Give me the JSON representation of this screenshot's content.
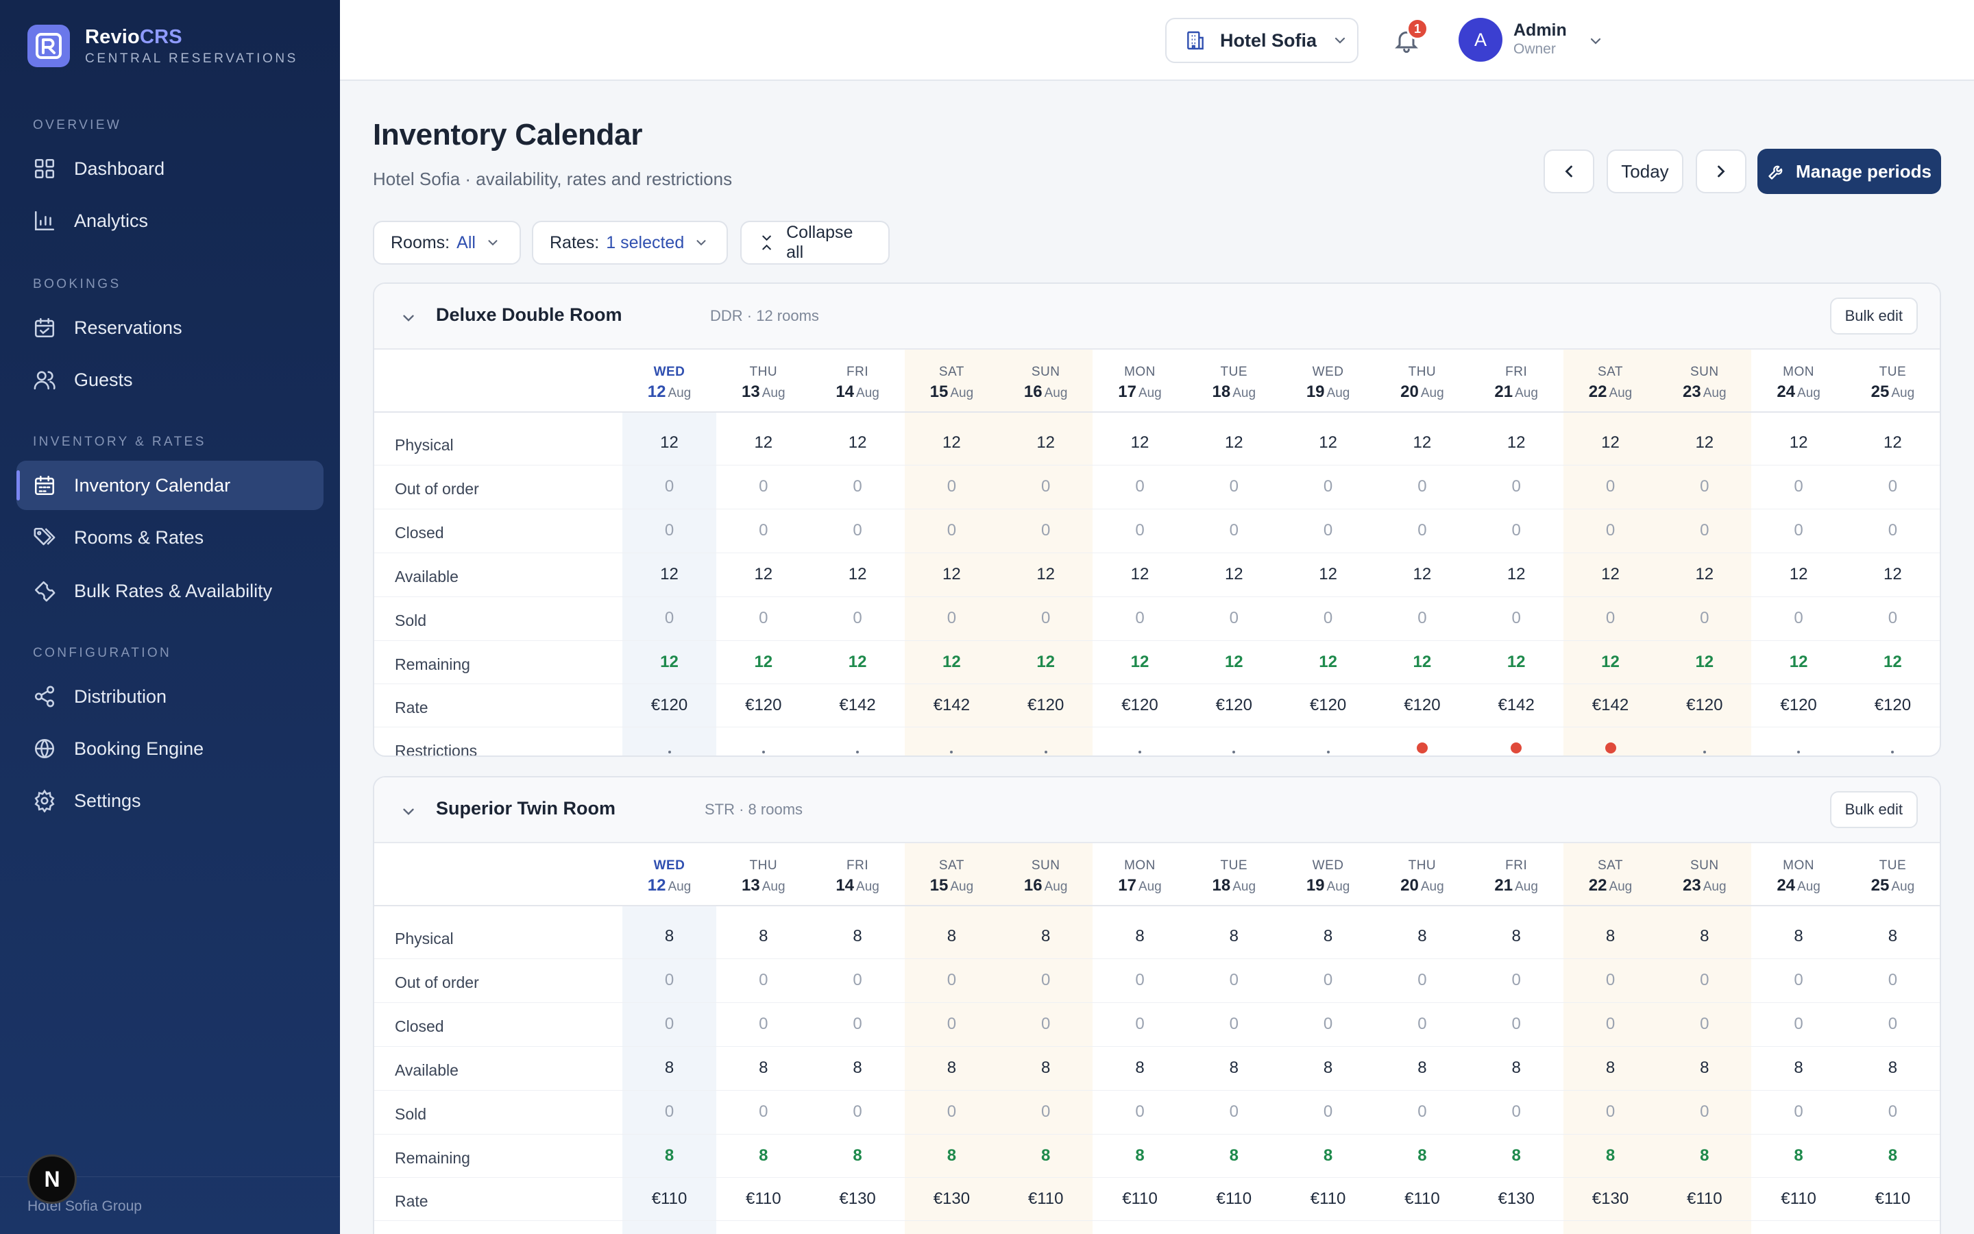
{
  "brand": {
    "name_main": "Revio",
    "name_accent": "CRS",
    "subtitle": "CENTRAL RESERVATIONS",
    "accent_color": "#8f9bff"
  },
  "sidebar": {
    "sections": [
      {
        "title": "OVERVIEW",
        "items": [
          {
            "label": "Dashboard",
            "icon": "grid-icon"
          },
          {
            "label": "Analytics",
            "icon": "bar-chart-icon"
          }
        ]
      },
      {
        "title": "BOOKINGS",
        "items": [
          {
            "label": "Reservations",
            "icon": "calendar-icon"
          },
          {
            "label": "Guests",
            "icon": "users-icon"
          }
        ]
      },
      {
        "title": "INVENTORY & RATES",
        "items": [
          {
            "label": "Inventory Calendar",
            "icon": "calendar-grid-icon",
            "active": true
          },
          {
            "label": "Rooms & Rates",
            "icon": "tags-icon"
          },
          {
            "label": "Bulk Rates & Availability",
            "icon": "wrench-icon"
          }
        ]
      },
      {
        "title": "CONFIGURATION",
        "items": [
          {
            "label": "Distribution",
            "icon": "share-icon"
          },
          {
            "label": "Booking Engine",
            "icon": "globe-icon"
          },
          {
            "label": "Settings",
            "icon": "gear-icon"
          }
        ]
      }
    ],
    "footer_text": "Hotel Sofia Group",
    "footer_badge": "N"
  },
  "topbar": {
    "hotel": "Hotel Sofia",
    "notifications_count": "1",
    "user": {
      "initial": "A",
      "name": "Admin",
      "role": "Owner"
    }
  },
  "page": {
    "title": "Inventory Calendar",
    "subtitle": "Hotel Sofia · availability, rates and restrictions",
    "today_label": "Today",
    "manage_label": "Manage periods"
  },
  "filters": {
    "rooms_label": "Rooms:",
    "rooms_value": "All",
    "rates_label": "Rates:",
    "rates_value": "1 selected",
    "collapse_label": "Collapse all"
  },
  "days": [
    {
      "dow": "WED",
      "day": "12",
      "mon": "Aug",
      "today": true
    },
    {
      "dow": "THU",
      "day": "13",
      "mon": "Aug"
    },
    {
      "dow": "FRI",
      "day": "14",
      "mon": "Aug"
    },
    {
      "dow": "SAT",
      "day": "15",
      "mon": "Aug",
      "weekend": true
    },
    {
      "dow": "SUN",
      "day": "16",
      "mon": "Aug",
      "weekend": true
    },
    {
      "dow": "MON",
      "day": "17",
      "mon": "Aug"
    },
    {
      "dow": "TUE",
      "day": "18",
      "mon": "Aug"
    },
    {
      "dow": "WED",
      "day": "19",
      "mon": "Aug"
    },
    {
      "dow": "THU",
      "day": "20",
      "mon": "Aug"
    },
    {
      "dow": "FRI",
      "day": "21",
      "mon": "Aug"
    },
    {
      "dow": "SAT",
      "day": "22",
      "mon": "Aug",
      "weekend": true
    },
    {
      "dow": "SUN",
      "day": "23",
      "mon": "Aug",
      "weekend": true
    },
    {
      "dow": "MON",
      "day": "24",
      "mon": "Aug"
    },
    {
      "dow": "TUE",
      "day": "25",
      "mon": "Aug"
    }
  ],
  "row_labels": [
    "Physical",
    "Out of order",
    "Closed",
    "Available",
    "Sold",
    "Remaining",
    "Rate",
    "Restrictions"
  ],
  "rooms": [
    {
      "name": "Deluxe Double Room",
      "meta": "DDR · 12 rooms",
      "bulk_label": "Bulk edit",
      "physical": "12",
      "out_of_order": "0",
      "closed": "0",
      "available": "12",
      "sold": "0",
      "remaining": "12",
      "rates": [
        "€120",
        "€120",
        "€142",
        "€142",
        "€120",
        "€120",
        "€120",
        "€120",
        "€120",
        "€142",
        "€142",
        "€120",
        "€120",
        "€120"
      ],
      "restrictions": [
        false,
        false,
        false,
        false,
        false,
        false,
        false,
        false,
        true,
        true,
        true,
        false,
        false,
        false
      ]
    },
    {
      "name": "Superior Twin Room",
      "meta": "STR · 8 rooms",
      "bulk_label": "Bulk edit",
      "physical": "8",
      "out_of_order": "0",
      "closed": "0",
      "available": "8",
      "sold": "0",
      "remaining": "8",
      "rates": [
        "€110",
        "€110",
        "€130",
        "€130",
        "€110",
        "€110",
        "€110",
        "€110",
        "€110",
        "€130",
        "€130",
        "€110",
        "€110",
        "€110"
      ],
      "restrictions": [
        false,
        false,
        false,
        false,
        false,
        false,
        false,
        false,
        true,
        true,
        true,
        false,
        false,
        false
      ]
    }
  ]
}
